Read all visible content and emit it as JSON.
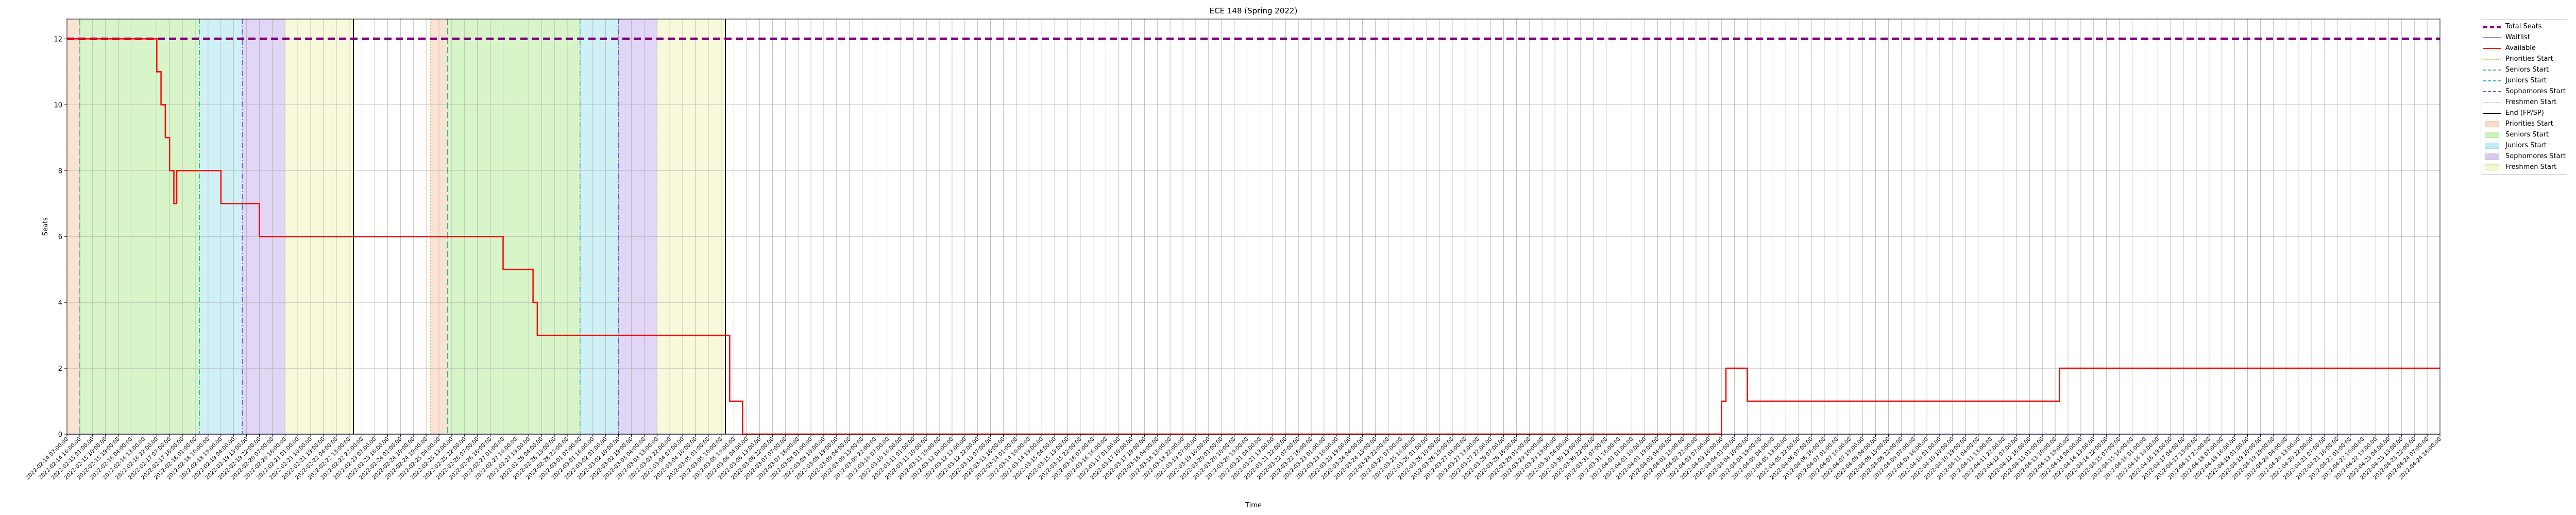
{
  "chart_data": {
    "type": "line",
    "title": "ECE 148 (Spring 2022)",
    "xlabel": "Time",
    "ylabel": "Seats",
    "ylim": [
      0,
      12.6
    ],
    "y_ticks": [
      "0",
      "2",
      "4",
      "6",
      "8",
      "10",
      "12"
    ],
    "grid": true,
    "legend_placement": "outside-right",
    "x_tick_labels": [
      "2022-02-14 07:00:00",
      "2022-02-14 16:00:00",
      "2022-02-15 01:00:00",
      "2022-02-15 10:00:00",
      "2022-02-15 19:00:00",
      "2022-02-16 04:00:00",
      "2022-02-16 13:00:00",
      "2022-02-16 22:00:00",
      "2022-02-17 07:00:00",
      "2022-02-17 16:00:00",
      "2022-02-18 01:00:00",
      "2022-02-18 10:00:00",
      "2022-02-18 19:00:00",
      "2022-02-19 04:00:00",
      "2022-02-19 13:00:00",
      "2022-02-19 22:00:00",
      "2022-02-20 07:00:00",
      "2022-02-20 16:00:00",
      "2022-02-21 01:00:00",
      "2022-02-21 10:00:00",
      "2022-02-21 19:00:00",
      "2022-02-22 04:00:00",
      "2022-02-22 13:00:00",
      "2022-02-22 22:00:00",
      "2022-02-23 07:00:00",
      "2022-02-23 16:00:00",
      "2022-02-24 01:00:00",
      "2022-02-24 10:00:00",
      "2022-02-24 19:00:00",
      "2022-02-25 04:00:00",
      "2022-02-25 13:00:00",
      "2022-02-25 22:00:00",
      "2022-02-26 07:00:00",
      "2022-02-26 16:00:00",
      "2022-02-27 01:00:00",
      "2022-02-27 10:00:00",
      "2022-02-27 19:00:00",
      "2022-02-28 04:00:00",
      "2022-02-28 13:00:00",
      "2022-02-28 22:00:00",
      "2022-03-01 07:00:00",
      "2022-03-01 16:00:00",
      "2022-03-02 01:00:00",
      "2022-03-02 10:00:00",
      "2022-03-02 19:00:00",
      "2022-03-03 04:00:00",
      "2022-03-03 13:00:00",
      "2022-03-03 22:00:00",
      "2022-03-04 07:00:00",
      "2022-03-04 16:00:00",
      "2022-03-05 01:00:00",
      "2022-03-05 10:00:00",
      "2022-03-05 19:00:00",
      "2022-03-06 04:00:00",
      "2022-03-06 13:00:00",
      "2022-03-06 22:00:00",
      "2022-03-07 07:00:00",
      "2022-03-07 16:00:00",
      "2022-03-08 01:00:00",
      "2022-03-08 10:00:00",
      "2022-03-08 19:00:00",
      "2022-03-09 04:00:00",
      "2022-03-09 13:00:00",
      "2022-03-09 22:00:00",
      "2022-03-10 07:00:00",
      "2022-03-10 16:00:00",
      "2022-03-11 01:00:00",
      "2022-03-11 10:00:00",
      "2022-03-11 19:00:00",
      "2022-03-12 04:00:00",
      "2022-03-12 13:00:00",
      "2022-03-12 22:00:00",
      "2022-03-13 07:00:00",
      "2022-03-13 16:00:00",
      "2022-03-14 01:00:00",
      "2022-03-14 10:00:00",
      "2022-03-14 19:00:00",
      "2022-03-15 04:00:00",
      "2022-03-15 13:00:00",
      "2022-03-15 22:00:00",
      "2022-03-16 07:00:00",
      "2022-03-16 16:00:00",
      "2022-03-17 01:00:00",
      "2022-03-17 10:00:00",
      "2022-03-17 19:00:00",
      "2022-03-18 04:00:00",
      "2022-03-18 13:00:00",
      "2022-03-18 22:00:00",
      "2022-03-19 07:00:00",
      "2022-03-19 16:00:00",
      "2022-03-20 01:00:00",
      "2022-03-20 10:00:00",
      "2022-03-20 19:00:00",
      "2022-03-21 04:00:00",
      "2022-03-21 13:00:00",
      "2022-03-21 22:00:00",
      "2022-03-22 07:00:00",
      "2022-03-22 16:00:00",
      "2022-03-23 01:00:00",
      "2022-03-23 10:00:00",
      "2022-03-23 19:00:00",
      "2022-03-24 04:00:00",
      "2022-03-24 13:00:00",
      "2022-03-24 22:00:00",
      "2022-03-25 07:00:00",
      "2022-03-25 16:00:00",
      "2022-03-26 01:00:00",
      "2022-03-26 10:00:00",
      "2022-03-26 19:00:00",
      "2022-03-27 04:00:00",
      "2022-03-27 13:00:00",
      "2022-03-27 22:00:00",
      "2022-03-28 07:00:00",
      "2022-03-28 16:00:00",
      "2022-03-29 01:00:00",
      "2022-03-29 10:00:00",
      "2022-03-29 19:00:00",
      "2022-03-30 04:00:00",
      "2022-03-30 13:00:00",
      "2022-03-30 22:00:00",
      "2022-03-31 07:00:00",
      "2022-03-31 16:00:00",
      "2022-04-01 01:00:00",
      "2022-04-01 10:00:00",
      "2022-04-01 19:00:00",
      "2022-04-02 04:00:00",
      "2022-04-02 13:00:00",
      "2022-04-02 22:00:00",
      "2022-04-03 07:00:00",
      "2022-04-03 16:00:00",
      "2022-04-04 01:00:00",
      "2022-04-04 10:00:00",
      "2022-04-04 19:00:00",
      "2022-04-05 04:00:00",
      "2022-04-05 13:00:00",
      "2022-04-05 22:00:00",
      "2022-04-06 07:00:00",
      "2022-04-06 16:00:00",
      "2022-04-07 01:00:00",
      "2022-04-07 10:00:00",
      "2022-04-07 19:00:00",
      "2022-04-08 04:00:00",
      "2022-04-08 13:00:00",
      "2022-04-08 22:00:00",
      "2022-04-09 07:00:00",
      "2022-04-09 16:00:00",
      "2022-04-10 01:00:00",
      "2022-04-10 10:00:00",
      "2022-04-10 19:00:00",
      "2022-04-11 04:00:00",
      "2022-04-11 13:00:00",
      "2022-04-11 22:00:00",
      "2022-04-12 07:00:00",
      "2022-04-12 16:00:00",
      "2022-04-13 01:00:00",
      "2022-04-13 10:00:00",
      "2022-04-13 19:00:00",
      "2022-04-14 04:00:00",
      "2022-04-14 13:00:00",
      "2022-04-14 22:00:00",
      "2022-04-15 07:00:00",
      "2022-04-15 16:00:00",
      "2022-04-16 01:00:00",
      "2022-04-16 10:00:00",
      "2022-04-16 19:00:00",
      "2022-04-17 04:00:00",
      "2022-04-17 13:00:00",
      "2022-04-17 22:00:00",
      "2022-04-18 07:00:00",
      "2022-04-18 16:00:00",
      "2022-04-19 01:00:00",
      "2022-04-19 10:00:00",
      "2022-04-19 19:00:00",
      "2022-04-20 04:00:00",
      "2022-04-20 13:00:00",
      "2022-04-20 22:00:00",
      "2022-04-21 07:00:00",
      "2022-04-21 16:00:00",
      "2022-04-22 01:00:00",
      "2022-04-22 10:00:00",
      "2022-04-22 19:00:00",
      "2022-04-23 04:00:00",
      "2022-04-23 13:00:00",
      "2022-04-23 22:00:00",
      "2022-04-24 07:00:00",
      "2022-04-24 16:00:00"
    ],
    "series": [
      {
        "name": "Total Seats",
        "color": "#800080",
        "style": "dashed",
        "points": [
          [
            "2022-02-14 07:00:00",
            12
          ],
          [
            "2022-04-24 16:00:00",
            12
          ]
        ]
      },
      {
        "name": "Waitlist",
        "color": "#9f8fe0",
        "style": "solid",
        "points": [
          [
            "2022-02-14 07:00:00",
            0
          ],
          [
            "2022-04-24 16:00:00",
            0
          ]
        ]
      },
      {
        "name": "Available",
        "color": "#ff0000",
        "style": "step",
        "points": [
          [
            "2022-02-14 07:00:00",
            12
          ],
          [
            "2022-02-16 22:00:00",
            12
          ],
          [
            "2022-02-16 22:00:00",
            11
          ],
          [
            "2022-02-17 01:00:00",
            11
          ],
          [
            "2022-02-17 01:00:00",
            10
          ],
          [
            "2022-02-17 04:00:00",
            10
          ],
          [
            "2022-02-17 04:00:00",
            9
          ],
          [
            "2022-02-17 07:00:00",
            9
          ],
          [
            "2022-02-17 07:00:00",
            8
          ],
          [
            "2022-02-17 10:00:00",
            8
          ],
          [
            "2022-02-17 10:00:00",
            7
          ],
          [
            "2022-02-17 12:00:00",
            7
          ],
          [
            "2022-02-17 12:00:00",
            8
          ],
          [
            "2022-02-18 19:00:00",
            8
          ],
          [
            "2022-02-18 19:00:00",
            7
          ],
          [
            "2022-02-19 22:00:00",
            7
          ],
          [
            "2022-02-19 22:00:00",
            6
          ],
          [
            "2022-02-27 01:00:00",
            6
          ],
          [
            "2022-02-27 01:00:00",
            5
          ],
          [
            "2022-02-27 22:00:00",
            5
          ],
          [
            "2022-02-27 22:00:00",
            4
          ],
          [
            "2022-02-28 01:00:00",
            4
          ],
          [
            "2022-02-28 01:00:00",
            3
          ],
          [
            "2022-03-05 16:00:00",
            3
          ],
          [
            "2022-03-05 16:00:00",
            1
          ],
          [
            "2022-03-06 01:00:00",
            1
          ],
          [
            "2022-03-06 01:00:00",
            0
          ],
          [
            "2022-04-03 16:00:00",
            0
          ],
          [
            "2022-04-03 16:00:00",
            1
          ],
          [
            "2022-04-03 19:00:00",
            1
          ],
          [
            "2022-04-03 19:00:00",
            2
          ],
          [
            "2022-04-04 10:00:00",
            2
          ],
          [
            "2022-04-04 10:00:00",
            1
          ],
          [
            "2022-04-13 13:00:00",
            1
          ],
          [
            "2022-04-13 13:00:00",
            2
          ],
          [
            "2022-04-24 16:00:00",
            2
          ]
        ]
      }
    ],
    "event_lines": [
      {
        "name": "Priorities Start",
        "color": "#e8b020",
        "style": "dotted",
        "times": [
          "2022-02-14 07:00:00",
          "2022-02-24 22:00:00"
        ]
      },
      {
        "name": "Seniors Start",
        "color": "#3cb371",
        "style": "dashed",
        "times": [
          "2022-02-14 16:00:00",
          "2022-02-25 10:00:00"
        ]
      },
      {
        "name": "Juniors Start",
        "color": "#20b2aa",
        "style": "dashdot",
        "times": [
          "2022-02-18 04:00:00",
          "2022-03-01 07:00:00"
        ]
      },
      {
        "name": "Sophomores Start",
        "color": "#6a5acd",
        "style": "dashdot",
        "times": [
          "2022-02-19 10:00:00",
          "2022-03-02 10:00:00"
        ]
      },
      {
        "name": "Freshmen Start",
        "color": "#c8c8a0",
        "style": "dotted",
        "times": [
          "2022-02-20 16:00:00",
          "2022-03-03 13:00:00"
        ]
      },
      {
        "name": "End (FP/SP)",
        "color": "#000000",
        "style": "solid",
        "times": [
          "2022-02-22 16:00:00",
          "2022-03-05 13:00:00"
        ]
      }
    ],
    "spans": [
      {
        "name": "Priorities Start",
        "color": "#f8ccb0",
        "ranges": [
          [
            "2022-02-14 07:00:00",
            "2022-02-14 16:00:00"
          ],
          [
            "2022-02-24 22:00:00",
            "2022-02-25 10:00:00"
          ]
        ]
      },
      {
        "name": "Seniors Start",
        "color": "#b8ec9e",
        "ranges": [
          [
            "2022-02-14 16:00:00",
            "2022-02-18 04:00:00"
          ],
          [
            "2022-02-25 10:00:00",
            "2022-03-01 07:00:00"
          ]
        ]
      },
      {
        "name": "Juniors Start",
        "color": "#a8e6ec",
        "ranges": [
          [
            "2022-02-18 04:00:00",
            "2022-02-19 10:00:00"
          ],
          [
            "2022-03-01 07:00:00",
            "2022-03-02 10:00:00"
          ]
        ]
      },
      {
        "name": "Sophomores Start",
        "color": "#c8b4ec",
        "ranges": [
          [
            "2022-02-19 10:00:00",
            "2022-02-20 16:00:00"
          ],
          [
            "2022-03-02 10:00:00",
            "2022-03-03 13:00:00"
          ]
        ]
      },
      {
        "name": "Freshmen Start",
        "color": "#f2f2bc",
        "ranges": [
          [
            "2022-02-20 16:00:00",
            "2022-02-22 16:00:00"
          ],
          [
            "2022-03-03 13:00:00",
            "2022-03-05 13:00:00"
          ]
        ]
      }
    ],
    "legend": [
      {
        "label": "Total Seats",
        "kind": "line",
        "color": "#800080",
        "style": "dashed"
      },
      {
        "label": "Waitlist",
        "kind": "line",
        "color": "#9f8fe0",
        "style": "solid"
      },
      {
        "label": "Available",
        "kind": "line",
        "color": "#ff0000",
        "style": "solid"
      },
      {
        "label": "Priorities Start",
        "kind": "line",
        "color": "#e8b020",
        "style": "dotted"
      },
      {
        "label": "Seniors Start",
        "kind": "line",
        "color": "#3cb371",
        "style": "dashed"
      },
      {
        "label": "Juniors Start",
        "kind": "line",
        "color": "#20b2aa",
        "style": "dashdot"
      },
      {
        "label": "Sophomores Start",
        "kind": "line",
        "color": "#6a5acd",
        "style": "dashdot"
      },
      {
        "label": "Freshmen Start",
        "kind": "line",
        "color": "#c8c8a0",
        "style": "dotted"
      },
      {
        "label": "End (FP/SP)",
        "kind": "line",
        "color": "#000000",
        "style": "solid"
      },
      {
        "label": "Priorities Start",
        "kind": "patch",
        "color": "#f8ccb0"
      },
      {
        "label": "Seniors Start",
        "kind": "patch",
        "color": "#b8ec9e"
      },
      {
        "label": "Juniors Start",
        "kind": "patch",
        "color": "#a8e6ec"
      },
      {
        "label": "Sophomores Start",
        "kind": "patch",
        "color": "#c8b4ec"
      },
      {
        "label": "Freshmen Start",
        "kind": "patch",
        "color": "#f2f2bc"
      }
    ]
  }
}
